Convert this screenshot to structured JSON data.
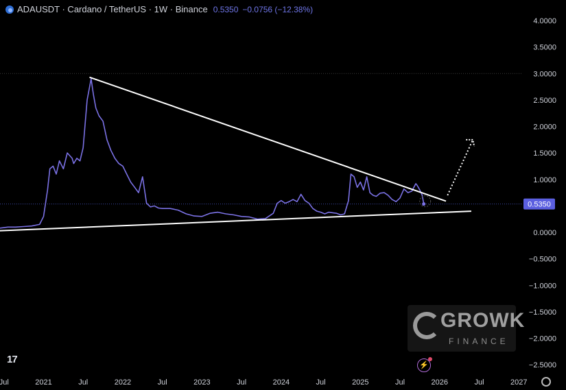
{
  "header": {
    "title": "ADAUSDT · Cardano / TetherUS · 1W · Binance",
    "price": "0.5350",
    "change": "−0.0756 (−12.38%)"
  },
  "price_tag": "0.5350",
  "watermark": {
    "name": "GROWK",
    "sub": "FINANCE"
  },
  "tv_logo": "17",
  "colors": {
    "series": "#7b72e6",
    "background": "#000000",
    "trendline": "#ffffff",
    "price_tag": "#5b5fe0"
  },
  "chart_data": {
    "type": "line",
    "title": "ADAUSDT · Cardano / TetherUS · 1W · Binance",
    "xlabel": "",
    "ylabel": "",
    "ylim": [
      -2.7,
      4.1
    ],
    "y_ticks": [
      "4.0000",
      "3.5000",
      "3.0000",
      "2.5000",
      "2.0000",
      "1.5000",
      "1.0000",
      "0.0000",
      "−0.5000",
      "−1.0000",
      "−1.5000",
      "−2.0000",
      "−2.5000"
    ],
    "x_tick_labels": [
      "Jul",
      "2021",
      "Jul",
      "2022",
      "Jul",
      "2023",
      "Jul",
      "2024",
      "Jul",
      "2025",
      "Jul",
      "2026",
      "Jul",
      "2027"
    ],
    "x_tick_dates": [
      2020.5,
      2021.0,
      2021.5,
      2022.0,
      2022.5,
      2023.0,
      2023.5,
      2024.0,
      2024.5,
      2025.0,
      2025.5,
      2026.0,
      2026.5,
      2027.0
    ],
    "xlim": [
      2020.45,
      2027.05
    ],
    "grid": false,
    "series": [
      {
        "values_x": [
          2020.45,
          2020.55,
          2020.65,
          2020.75,
          2020.85,
          2020.95,
          2021.0,
          2021.05,
          2021.08,
          2021.12,
          2021.16,
          2021.2,
          2021.25,
          2021.3,
          2021.33,
          2021.36,
          2021.38,
          2021.42,
          2021.46,
          2021.5,
          2021.55,
          2021.6,
          2021.63,
          2021.66,
          2021.7,
          2021.75,
          2021.8,
          2021.85,
          2021.9,
          2021.95,
          2022.0,
          2022.05,
          2022.1,
          2022.15,
          2022.2,
          2022.25,
          2022.3,
          2022.35,
          2022.4,
          2022.45,
          2022.5,
          2022.6,
          2022.7,
          2022.8,
          2022.9,
          2023.0,
          2023.1,
          2023.2,
          2023.3,
          2023.4,
          2023.5,
          2023.6,
          2023.7,
          2023.8,
          2023.9,
          2023.95,
          2024.0,
          2024.05,
          2024.1,
          2024.15,
          2024.2,
          2024.25,
          2024.3,
          2024.35,
          2024.4,
          2024.45,
          2024.5,
          2024.55,
          2024.6,
          2024.65,
          2024.7,
          2024.75,
          2024.8,
          2024.85,
          2024.88,
          2024.92,
          2024.96,
          2025.0,
          2025.04,
          2025.08,
          2025.12,
          2025.16,
          2025.2,
          2025.25,
          2025.3,
          2025.35,
          2025.4,
          2025.45,
          2025.5,
          2025.55,
          2025.6,
          2025.65,
          2025.7,
          2025.72,
          2025.75,
          2025.78,
          2025.8
        ],
        "values": [
          0.08,
          0.1,
          0.1,
          0.11,
          0.12,
          0.15,
          0.3,
          0.8,
          1.2,
          1.25,
          1.1,
          1.35,
          1.2,
          1.5,
          1.45,
          1.4,
          1.3,
          1.4,
          1.35,
          1.6,
          2.5,
          2.9,
          2.6,
          2.35,
          2.2,
          2.1,
          1.75,
          1.55,
          1.4,
          1.3,
          1.25,
          1.1,
          0.95,
          0.85,
          0.75,
          1.05,
          0.55,
          0.48,
          0.5,
          0.46,
          0.45,
          0.45,
          0.42,
          0.35,
          0.31,
          0.3,
          0.36,
          0.38,
          0.35,
          0.33,
          0.3,
          0.29,
          0.25,
          0.26,
          0.36,
          0.55,
          0.6,
          0.55,
          0.58,
          0.62,
          0.58,
          0.72,
          0.6,
          0.55,
          0.45,
          0.4,
          0.38,
          0.35,
          0.38,
          0.37,
          0.36,
          0.33,
          0.35,
          0.6,
          1.1,
          1.05,
          0.85,
          0.95,
          0.8,
          1.05,
          0.75,
          0.7,
          0.68,
          0.74,
          0.75,
          0.7,
          0.62,
          0.58,
          0.65,
          0.82,
          0.75,
          0.78,
          0.92,
          0.88,
          0.8,
          0.7,
          0.535
        ]
      }
    ],
    "trendlines": [
      {
        "x": [
          2021.58,
          2026.08
        ],
        "y": [
          2.93,
          0.59
        ]
      },
      {
        "x": [
          2020.45,
          2026.4
        ],
        "y": [
          0.03,
          0.4
        ]
      }
    ],
    "projection": {
      "x": [
        2026.1,
        2026.42
      ],
      "y": [
        0.7,
        1.75
      ]
    },
    "last_price": 0.535,
    "reference_level": 3.0
  }
}
